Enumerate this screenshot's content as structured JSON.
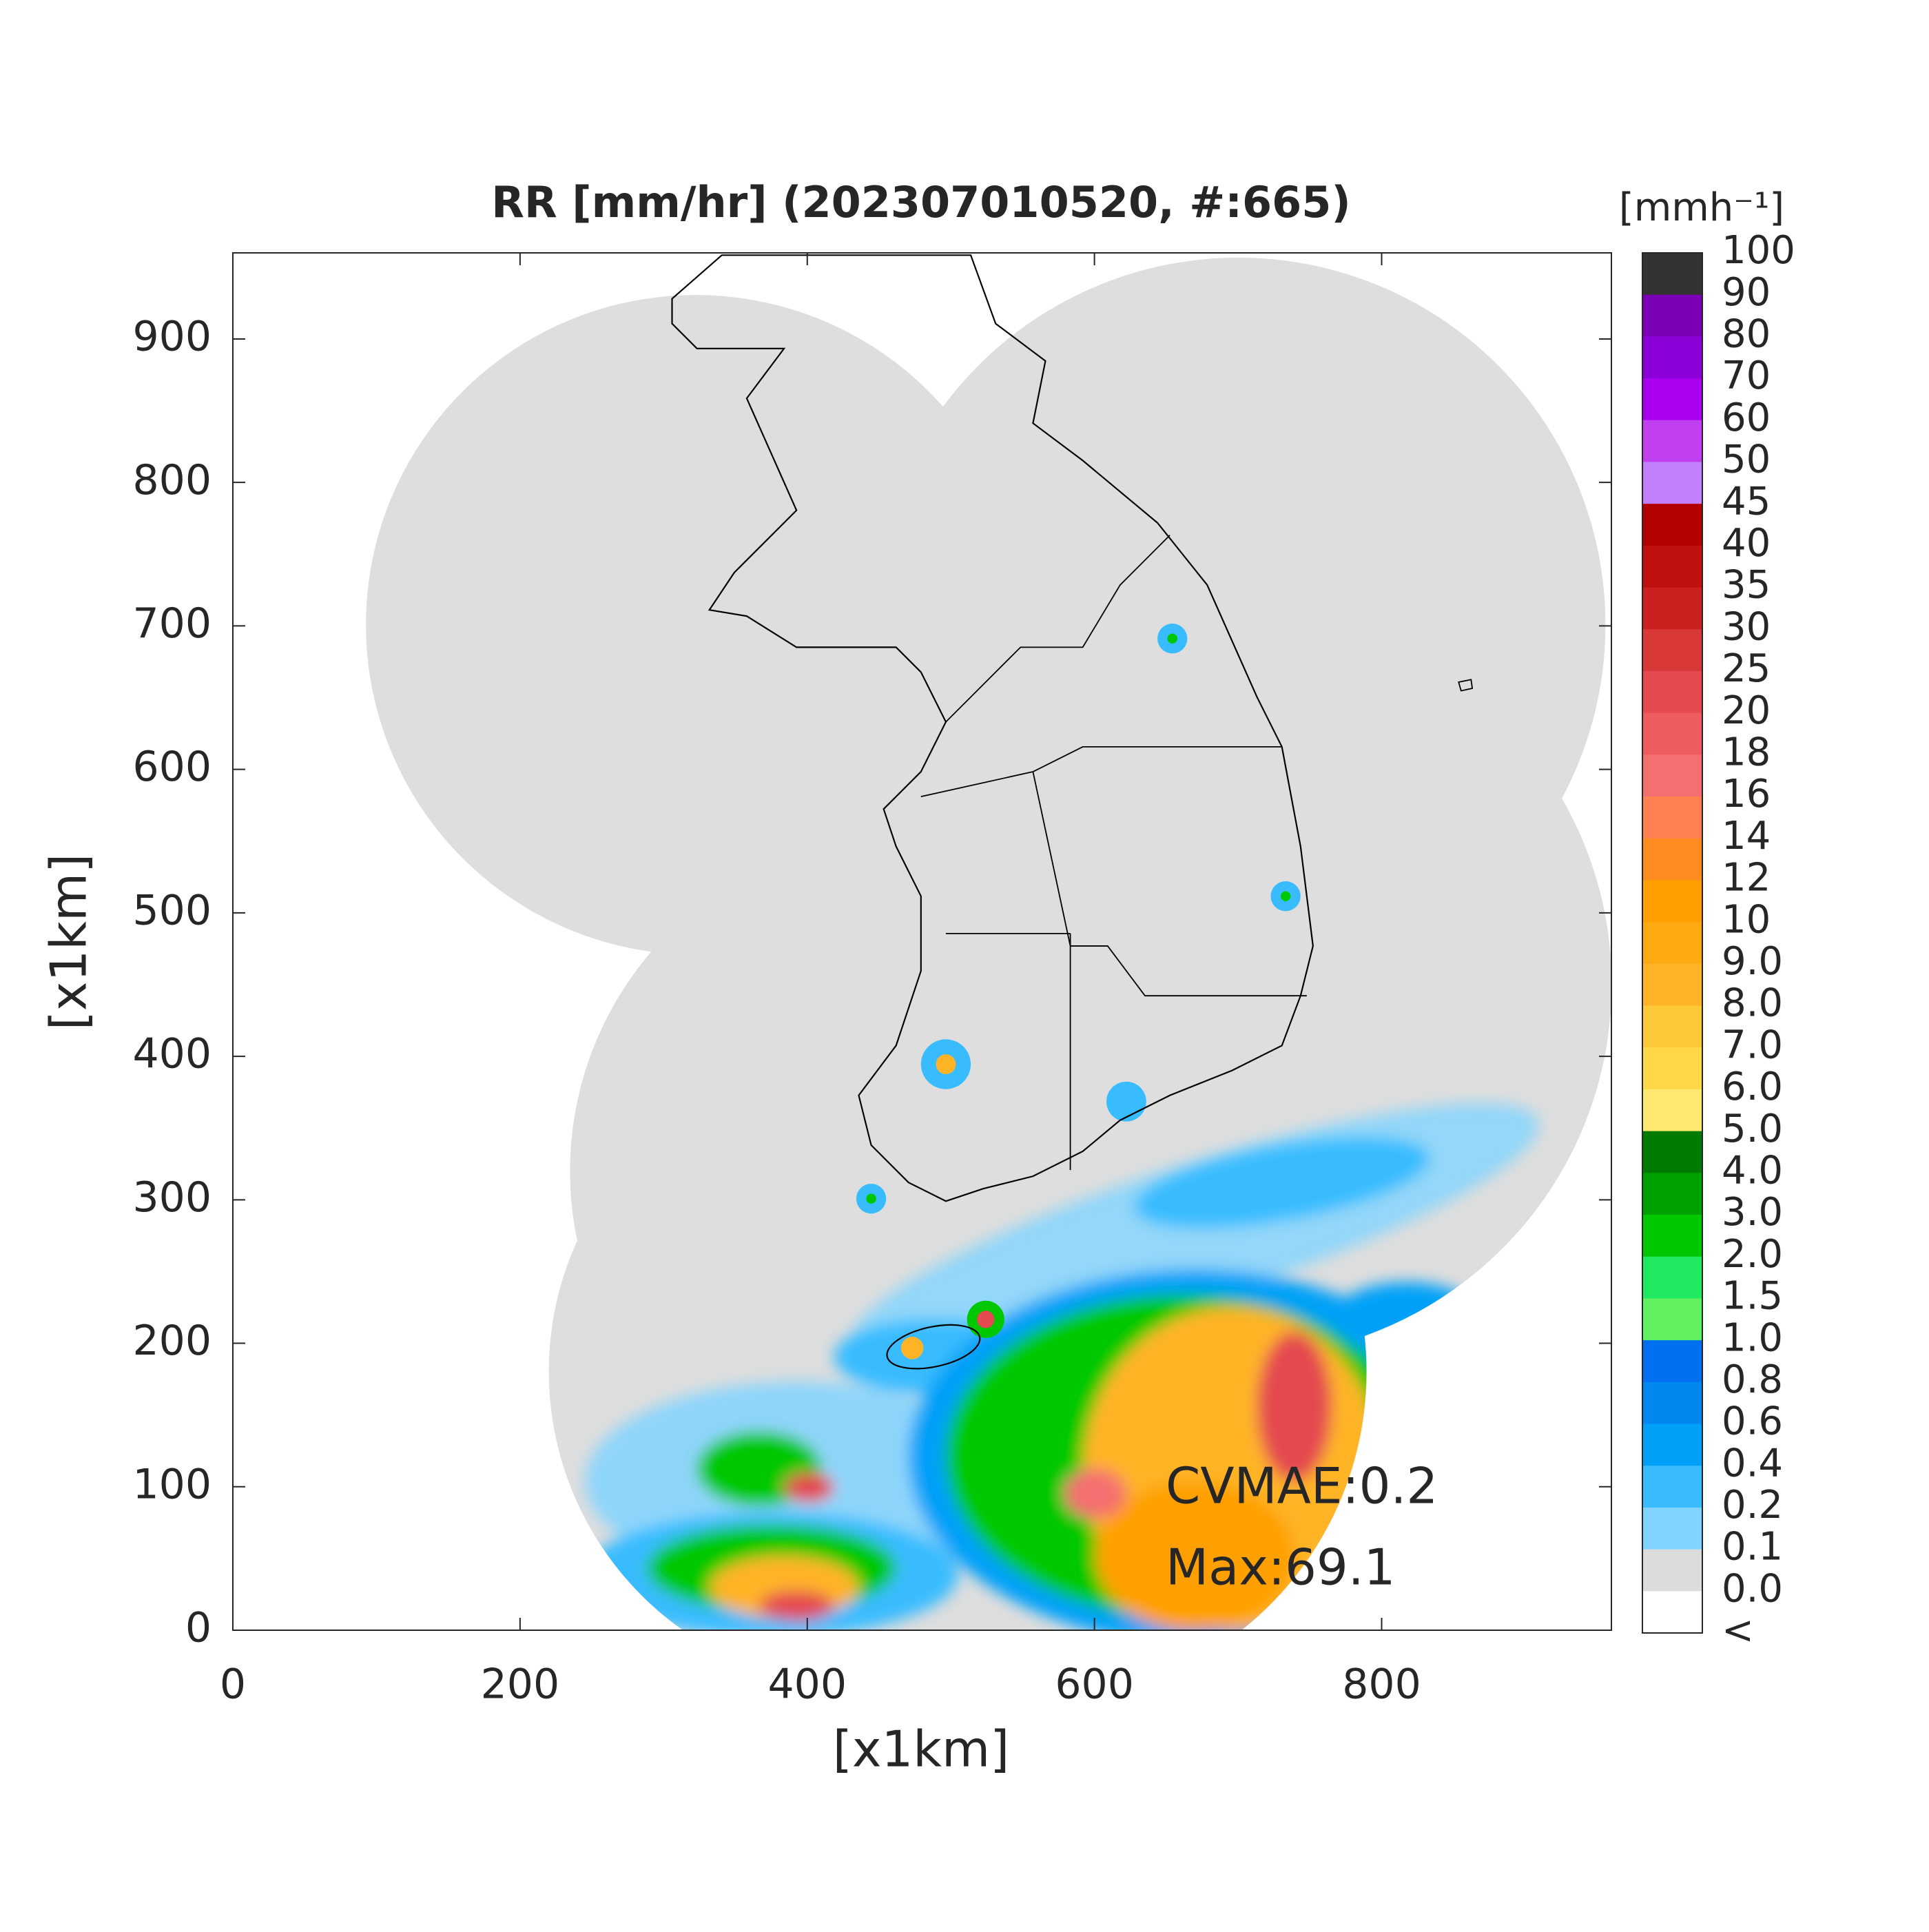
{
  "chart_data": {
    "type": "map",
    "title": "RR [mm/hr] (202307010520, #:665)",
    "x_label": "[x1km]",
    "y_label": "[x1km]",
    "xlim": [
      0,
      960
    ],
    "ylim": [
      0,
      960
    ],
    "xticks": [
      0,
      200,
      400,
      600,
      800
    ],
    "yticks": [
      0,
      100,
      200,
      300,
      400,
      500,
      600,
      700,
      800,
      900
    ],
    "colorbar": {
      "unit": "[mmh⁻¹]",
      "tick_labels": [
        "100",
        "90",
        "80",
        "70",
        "60",
        "50",
        "45",
        "40",
        "35",
        "30",
        "25",
        "20",
        "18",
        "16",
        "14",
        "12",
        "10",
        "9.0",
        "8.0",
        "7.0",
        "6.0",
        "5.0",
        "4.0",
        "3.0",
        "2.0",
        "1.5",
        "1.0",
        "0.8",
        "0.6",
        "0.4",
        "0.2",
        "0.1",
        "0.0",
        "<"
      ],
      "colors": [
        "#333333",
        "#7a00b5",
        "#8b00d6",
        "#a900f0",
        "#c040f0",
        "#c280ff",
        "#b30000",
        "#c01010",
        "#cc2020",
        "#d83838",
        "#e44a50",
        "#ee5c60",
        "#f47070",
        "#ff8050",
        "#ff8c20",
        "#ffa000",
        "#ffaa10",
        "#ffb428",
        "#ffc838",
        "#ffd84a",
        "#ffe870",
        "#007a00",
        "#00a000",
        "#00c800",
        "#20e860",
        "#60f060",
        "#0070f0",
        "#0088f0",
        "#00a0f8",
        "#38bcff",
        "#80d4ff",
        "#dcdcdc",
        "#ffffff"
      ]
    },
    "annotations": [
      "CVMAE:0.2",
      "Max:69.1"
    ]
  }
}
